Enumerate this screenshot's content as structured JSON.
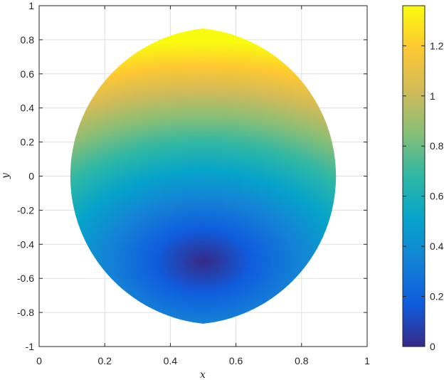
{
  "chart_data": {
    "type": "heatmap",
    "title": "",
    "xlabel": "x",
    "ylabel": "y",
    "xlim": [
      0,
      1
    ],
    "ylim": [
      -1,
      1
    ],
    "grid": true,
    "x_ticks": [
      0,
      0.2,
      0.4,
      0.6,
      0.8,
      1
    ],
    "y_ticks": [
      -1,
      -0.8,
      -0.6,
      -0.4,
      -0.2,
      0,
      0.2,
      0.4,
      0.6,
      0.8,
      1
    ],
    "x_tick_labels": [
      "0",
      "0.2",
      "0.4",
      "0.6",
      "0.8",
      "1"
    ],
    "y_tick_labels": [
      "-1",
      "-0.8",
      "-0.6",
      "-0.4",
      "-0.2",
      "0",
      "0.2",
      "0.4",
      "0.6",
      "0.8",
      "1"
    ],
    "colorbar": {
      "colormap": "parula",
      "range": [
        0,
        1.36
      ],
      "ticks": [
        0,
        0.2,
        0.4,
        0.6,
        0.8,
        1,
        1.2
      ],
      "tick_labels": [
        "0",
        "0.2",
        "0.4",
        "0.6",
        "0.8",
        "1",
        "1.2"
      ],
      "colors": [
        "#352a87",
        "#0f5cdd",
        "#1481d6",
        "#06a4ca",
        "#2eb7a4",
        "#87bf77",
        "#d1bb59",
        "#fec832",
        "#f9fb0e"
      ]
    },
    "domain": {
      "shape": "lens",
      "boundary_x": [
        0,
        0.5,
        1
      ],
      "boundary_y": [
        -0.866,
        0,
        0.866
      ]
    },
    "field": {
      "minimum_at": [
        0.5,
        -0.5
      ],
      "minimum_value": 0,
      "maximum_at": [
        0.5,
        0.866
      ],
      "maximum_value": 1.36
    }
  }
}
